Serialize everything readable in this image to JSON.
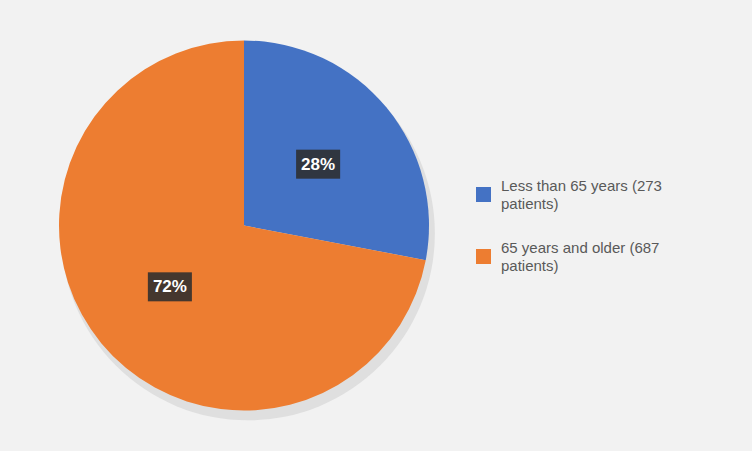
{
  "chart_data": {
    "type": "pie",
    "categories": [
      "Less than 65 years (273\npatients)",
      "65 years and older (687\npatients)"
    ],
    "values": [
      28,
      72
    ],
    "value_labels": [
      "28%",
      "72%"
    ],
    "colors": [
      "#4472C4",
      "#ED7D31"
    ],
    "data_labels": true,
    "legend": "right"
  }
}
